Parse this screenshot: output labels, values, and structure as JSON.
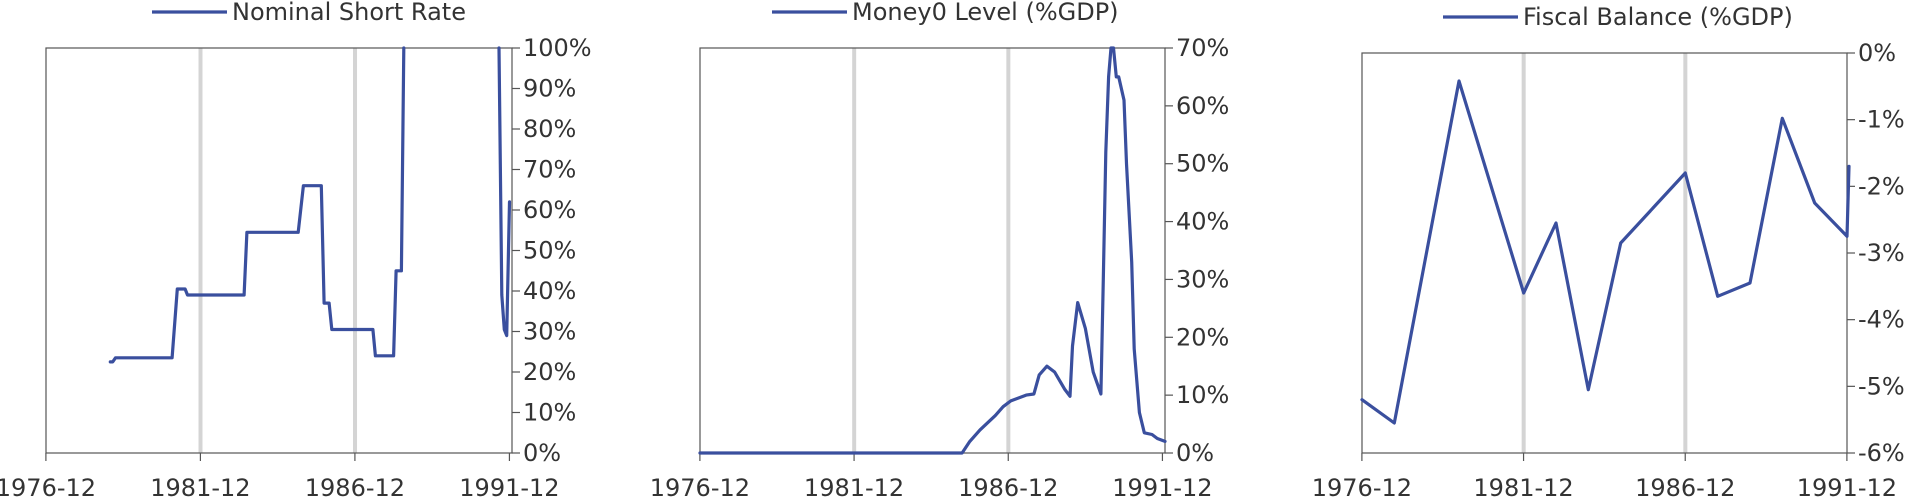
{
  "colors": {
    "series": "#3a4f9e",
    "grid": "#d4d4d4",
    "axis": "#555555",
    "text": "#333333"
  },
  "chart_data": [
    {
      "type": "line",
      "title": "",
      "legend": {
        "position": "top",
        "entries": [
          "Nominal Short Rate"
        ]
      },
      "x_ticks": [
        "1976-12",
        "1981-12",
        "1986-12",
        "1991-12"
      ],
      "x_range": [
        1976.92,
        1992.0
      ],
      "grid_x": [
        1981.92,
        1986.92
      ],
      "y_axis_side": "right",
      "ylim": [
        0,
        100
      ],
      "y_ticks": [
        0,
        10,
        20,
        30,
        40,
        50,
        60,
        70,
        80,
        90,
        100
      ],
      "y_tick_labels": [
        "0%",
        "10%",
        "20%",
        "30%",
        "40%",
        "50%",
        "60%",
        "70%",
        "80%",
        "90%",
        "100%"
      ],
      "series": [
        {
          "name": "Nominal Short Rate",
          "segments": [
            [
              [
                1979.0,
                22.5
              ],
              [
                1979.08,
                22.5
              ],
              [
                1979.17,
                23.5
              ],
              [
                1981.0,
                23.5
              ],
              [
                1981.17,
                40.5
              ],
              [
                1981.42,
                40.5
              ],
              [
                1981.5,
                39.0
              ],
              [
                1983.33,
                39.0
              ],
              [
                1983.42,
                54.5
              ],
              [
                1985.08,
                54.5
              ],
              [
                1985.25,
                66.0
              ],
              [
                1985.83,
                66.0
              ],
              [
                1985.92,
                37.0
              ],
              [
                1986.08,
                37.0
              ],
              [
                1986.17,
                30.5
              ],
              [
                1987.5,
                30.5
              ],
              [
                1987.58,
                24.0
              ],
              [
                1988.17,
                24.0
              ],
              [
                1988.25,
                45.0
              ],
              [
                1988.42,
                45.0
              ],
              [
                1988.5,
                100
              ]
            ],
            [
              [
                1991.58,
                100
              ],
              [
                1991.67,
                39.0
              ],
              [
                1991.75,
                30.5
              ],
              [
                1991.83,
                29.0
              ],
              [
                1991.92,
                62.0
              ]
            ]
          ]
        }
      ]
    },
    {
      "type": "line",
      "title": "",
      "legend": {
        "position": "top",
        "entries": [
          "Money0 Level (%GDP)"
        ]
      },
      "x_ticks": [
        "1976-12",
        "1981-12",
        "1986-12",
        "1991-12"
      ],
      "x_range": [
        1976.92,
        1992.0
      ],
      "grid_x": [
        1981.92,
        1986.92
      ],
      "y_axis_side": "right",
      "ylim": [
        0,
        70
      ],
      "y_ticks": [
        0,
        10,
        20,
        30,
        40,
        50,
        60,
        70
      ],
      "y_tick_labels": [
        "0%",
        "10%",
        "20%",
        "30%",
        "40%",
        "50%",
        "60%",
        "70%"
      ],
      "series": [
        {
          "name": "Money0 Level (%GDP)",
          "segments": [
            [
              [
                1976.92,
                0
              ],
              [
                1985.42,
                0
              ],
              [
                1985.67,
                2
              ],
              [
                1986.0,
                4
              ],
              [
                1986.5,
                6.5
              ],
              [
                1986.75,
                8
              ],
              [
                1987.0,
                9
              ],
              [
                1987.5,
                10
              ],
              [
                1987.75,
                10.2
              ],
              [
                1987.92,
                13.5
              ],
              [
                1988.17,
                15
              ],
              [
                1988.42,
                14
              ],
              [
                1988.75,
                11
              ],
              [
                1988.92,
                9.8
              ],
              [
                1989.0,
                18.5
              ],
              [
                1989.17,
                26
              ],
              [
                1989.42,
                21.5
              ],
              [
                1989.67,
                14
              ],
              [
                1989.92,
                10.2
              ],
              [
                1990.0,
                30
              ],
              [
                1990.08,
                52
              ],
              [
                1990.17,
                65
              ],
              [
                1990.25,
                70
              ],
              [
                1990.33,
                70
              ],
              [
                1990.42,
                65
              ],
              [
                1990.5,
                65
              ],
              [
                1990.67,
                61
              ],
              [
                1990.75,
                50
              ],
              [
                1990.92,
                33
              ],
              [
                1991.0,
                18
              ],
              [
                1991.17,
                7
              ],
              [
                1991.33,
                3.5
              ],
              [
                1991.58,
                3.2
              ],
              [
                1991.75,
                2.5
              ],
              [
                1992.0,
                2.0
              ]
            ]
          ]
        }
      ]
    },
    {
      "type": "line",
      "title": "",
      "legend": {
        "position": "top",
        "entries": [
          "Fiscal Balance (%GDP)"
        ]
      },
      "x_ticks": [
        "1976-12",
        "1981-12",
        "1986-12",
        "1991-12"
      ],
      "x_range": [
        1976.92,
        1991.92
      ],
      "grid_x": [
        1981.92,
        1986.92
      ],
      "y_axis_side": "right",
      "ylim": [
        -6,
        0
      ],
      "y_ticks": [
        -6,
        -5,
        -4,
        -3,
        -2,
        -1,
        0
      ],
      "y_tick_labels": [
        "-6%",
        "-5%",
        "-4%",
        "-3%",
        "-2%",
        "-1%",
        "0%"
      ],
      "series": [
        {
          "name": "Fiscal Balance (%GDP)",
          "segments": [
            [
              [
                1976.92,
                -5.2
              ],
              [
                1977.92,
                -5.55
              ],
              [
                1979.92,
                -0.42
              ],
              [
                1981.92,
                -3.6
              ],
              [
                1982.92,
                -2.55
              ],
              [
                1983.92,
                -5.05
              ],
              [
                1984.92,
                -2.85
              ],
              [
                1986.92,
                -1.8
              ],
              [
                1987.92,
                -3.65
              ],
              [
                1988.92,
                -3.45
              ],
              [
                1989.92,
                -0.98
              ],
              [
                1990.92,
                -2.25
              ],
              [
                1991.92,
                -2.75
              ],
              [
                1992.5,
                -1.7
              ]
            ]
          ]
        }
      ]
    }
  ]
}
